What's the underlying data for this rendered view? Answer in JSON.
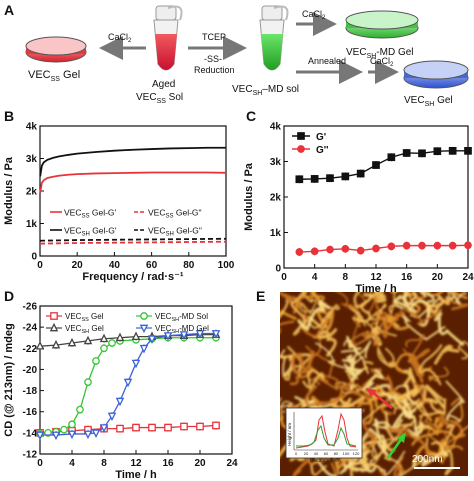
{
  "panels": {
    "a": "A",
    "b": "B",
    "c": "C",
    "d": "D",
    "e": "E"
  },
  "scheme": {
    "cacl2_left": "CaCl",
    "cacl2_left_sub": "2",
    "vecss_gel": "VEC",
    "vecss_gel_sub": "SS",
    "vecss_gel_suffix": " Gel",
    "aged_line1": "Aged",
    "aged_line2": "VEC",
    "aged_line2_sub": "SS",
    "aged_line2_suffix": " Sol",
    "tcep": "TCEP",
    "ss": "-SS-",
    "reduction": "Reduction",
    "vecsh_md_sol": "VEC",
    "vecsh_md_sol_sub": "SH",
    "vecsh_md_sol_suffix": "–MD sol",
    "cacl2_top": "CaCl",
    "cacl2_top_sub": "2",
    "vecsh_md_gel": "VEC",
    "vecsh_md_gel_sub": "SH",
    "vecsh_md_gel_suffix": "-MD Gel",
    "annealed": "Annealed",
    "cacl2_bottom": "CaCl",
    "cacl2_bottom_sub": "2",
    "vecsh_gel": "VEC",
    "vecsh_gel_sub": "SH",
    "vecsh_gel_suffix": " Gel",
    "colors": {
      "red": "#e8333a",
      "green": "#35c435",
      "blue": "#3a63d8"
    }
  },
  "chart_data": [
    {
      "id": "B",
      "type": "line",
      "xlabel": "Frequency / rad·s⁻¹",
      "ylabel": "Modulus / Pa",
      "xlim": [
        0,
        100
      ],
      "ylim": [
        0,
        4000
      ],
      "xticks": [
        0,
        20,
        40,
        60,
        80,
        100
      ],
      "yticks": [
        0,
        1000,
        2000,
        3000,
        4000
      ],
      "yticklabels": [
        "0",
        "1k",
        "2k",
        "3k",
        "4k"
      ],
      "legend": [
        {
          "pre": "VEC",
          "sub": "SS",
          "post": " Gel-G'",
          "color": "#e8333a",
          "dash": false
        },
        {
          "pre": "VEC",
          "sub": "SS",
          "post": " Gel-G\"",
          "color": "#e8333a",
          "dash": true
        },
        {
          "pre": "VEC",
          "sub": "SH",
          "post": " Gel-G'",
          "color": "#111111",
          "dash": false
        },
        {
          "pre": "VEC",
          "sub": "SH",
          "post": " Gel-G\"",
          "color": "#111111",
          "dash": true
        }
      ],
      "series": [
        {
          "color": "#e8333a",
          "dash": false,
          "x": [
            0.1,
            1,
            2,
            4,
            7,
            10,
            15,
            20,
            30,
            40,
            50,
            60,
            70,
            80,
            90,
            100
          ],
          "y": [
            1950,
            2250,
            2330,
            2400,
            2440,
            2470,
            2500,
            2520,
            2540,
            2550,
            2560,
            2570,
            2570,
            2570,
            2570,
            2560
          ]
        },
        {
          "color": "#e8333a",
          "dash": true,
          "x": [
            0,
            10,
            20,
            40,
            60,
            80,
            100
          ],
          "y": [
            380,
            390,
            400,
            410,
            420,
            430,
            440
          ]
        },
        {
          "color": "#111111",
          "dash": false,
          "x": [
            0.1,
            1,
            2,
            4,
            7,
            10,
            15,
            20,
            30,
            40,
            50,
            60,
            70,
            80,
            90,
            100
          ],
          "y": [
            2450,
            2780,
            2880,
            2960,
            3020,
            3060,
            3110,
            3150,
            3200,
            3240,
            3270,
            3290,
            3310,
            3320,
            3330,
            3330
          ]
        },
        {
          "color": "#111111",
          "dash": true,
          "x": [
            0,
            10,
            20,
            40,
            60,
            80,
            100
          ],
          "y": [
            470,
            480,
            490,
            500,
            510,
            520,
            530
          ]
        }
      ]
    },
    {
      "id": "C",
      "type": "line",
      "xlabel": "Time / h",
      "ylabel": "Modulus / Pa",
      "xlim": [
        0,
        24
      ],
      "ylim": [
        0,
        4000
      ],
      "xticks": [
        0,
        4,
        8,
        12,
        16,
        20,
        24
      ],
      "yticks": [
        0,
        1000,
        2000,
        3000,
        4000
      ],
      "yticklabels": [
        "0",
        "1k",
        "2k",
        "3k",
        "4k"
      ],
      "legend": [
        {
          "label": "G'",
          "color": "#111111"
        },
        {
          "label": "G''",
          "color": "#e8333a"
        }
      ],
      "series": [
        {
          "name": "G'",
          "color": "#111111",
          "marker": "square",
          "x": [
            2,
            4,
            6,
            8,
            10,
            12,
            14,
            16,
            18,
            20,
            22,
            24
          ],
          "y": [
            2500,
            2510,
            2530,
            2580,
            2660,
            2900,
            3120,
            3240,
            3230,
            3290,
            3300,
            3300
          ]
        },
        {
          "name": "G''",
          "color": "#e8333a",
          "marker": "circle",
          "x": [
            2,
            4,
            6,
            8,
            10,
            12,
            14,
            16,
            18,
            20,
            22,
            24
          ],
          "y": [
            450,
            470,
            520,
            540,
            490,
            550,
            610,
            630,
            630,
            630,
            630,
            640
          ]
        }
      ]
    },
    {
      "id": "D",
      "type": "line",
      "xlabel": "Time / h",
      "ylabel": "CD (@ 213nm) / mdeg",
      "xlim": [
        0,
        24
      ],
      "ylim": [
        -12,
        -26
      ],
      "xticks": [
        0,
        4,
        8,
        12,
        16,
        20,
        24
      ],
      "yticks": [
        -12,
        -14,
        -16,
        -18,
        -20,
        -22,
        -24,
        -26
      ],
      "legend": [
        {
          "pre": "VEC",
          "sub": "SS",
          "post": " Gel",
          "color": "#e8333a",
          "marker": "square"
        },
        {
          "pre": "VEC",
          "sub": "SH",
          "post": "-MD Sol",
          "color": "#35c435",
          "marker": "circle"
        },
        {
          "pre": "VEC",
          "sub": "SH",
          "post": " Gel",
          "color": "#444444",
          "marker": "triangle"
        },
        {
          "pre": "VEC",
          "sub": "SH",
          "post": "-MD Gel",
          "color": "#3a63d8",
          "marker": "tri-down"
        }
      ],
      "series": [
        {
          "color": "#e8333a",
          "marker": "square",
          "x": [
            0,
            2,
            4,
            6,
            8,
            10,
            12,
            14,
            16,
            18,
            20,
            22
          ],
          "y": [
            -14.0,
            -14.1,
            -14.2,
            -14.3,
            -14.4,
            -14.4,
            -14.5,
            -14.5,
            -14.5,
            -14.6,
            -14.6,
            -14.7
          ]
        },
        {
          "color": "#35c435",
          "marker": "circle",
          "x": [
            0,
            1,
            2,
            3,
            4,
            5,
            6,
            7,
            8,
            9,
            10,
            12,
            14,
            16,
            18,
            20,
            22
          ],
          "y": [
            -13.9,
            -14.0,
            -14.1,
            -14.3,
            -14.8,
            -16.2,
            -18.8,
            -20.8,
            -22.0,
            -22.5,
            -22.7,
            -22.8,
            -22.9,
            -23.0,
            -23.0,
            -23.0,
            -23.0
          ]
        },
        {
          "color": "#444444",
          "marker": "triangle",
          "x": [
            0,
            2,
            4,
            6,
            8,
            10,
            12,
            14,
            16,
            18,
            20,
            22
          ],
          "y": [
            -22.2,
            -22.3,
            -22.5,
            -22.7,
            -22.9,
            -23.0,
            -23.1,
            -23.1,
            -23.2,
            -23.2,
            -23.3,
            -23.3
          ]
        },
        {
          "color": "#3a63d8",
          "marker": "tri-down",
          "x": [
            0,
            2,
            4,
            6,
            7,
            8,
            9,
            10,
            11,
            12,
            13,
            14,
            16,
            18,
            20,
            22
          ],
          "y": [
            -13.8,
            -13.8,
            -13.9,
            -13.9,
            -14.0,
            -14.5,
            -15.6,
            -17.0,
            -18.8,
            -20.6,
            -22.0,
            -22.9,
            -23.2,
            -23.3,
            -23.4,
            -23.4
          ]
        }
      ]
    }
  ],
  "afm": {
    "scale_label": "200nm",
    "inset_xlabel": "Distance / nm",
    "inset_ylabel": "Height / nm",
    "inset_xticks": [
      "0",
      "20",
      "40",
      "60",
      "80",
      "100",
      "120"
    ],
    "inset_colors": {
      "red": "#e8333a",
      "green": "#2e9e2e"
    }
  }
}
